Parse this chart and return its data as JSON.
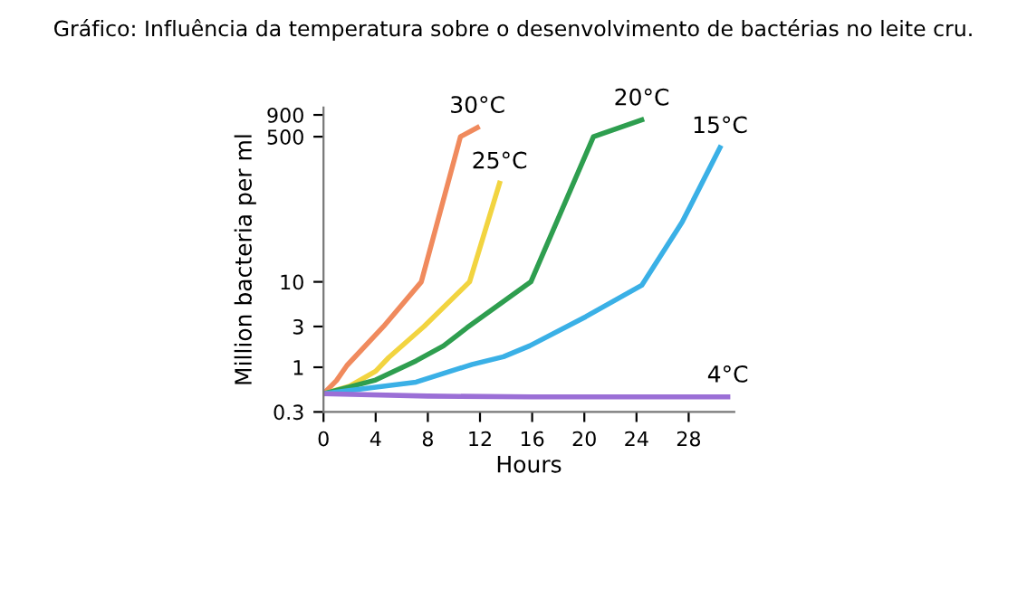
{
  "chart_data": {
    "type": "line",
    "title": "Gráfico: Influência da temperatura sobre o desenvolvimento de bactérias no leite cru.",
    "xlabel": "Hours",
    "ylabel": "Million bacteria per ml",
    "xlim": [
      0,
      31.5
    ],
    "xticks": [
      0,
      4,
      8,
      12,
      16,
      20,
      24,
      28
    ],
    "ylim": [
      0.3,
      1100
    ],
    "yticks": [
      0.3,
      1,
      3,
      10,
      500,
      900
    ],
    "log": "y",
    "grid": false,
    "legend": false,
    "marker": "none",
    "line_style": "solid",
    "series": [
      {
        "name": "30°C",
        "color": "#f08a5d",
        "x": [
          0,
          1,
          1.8,
          4.6,
          7.5,
          10.5,
          11.8
        ],
        "values": [
          0.49,
          0.7,
          1.05,
          3,
          10,
          500,
          640
        ]
      },
      {
        "name": "25°C",
        "color": "#f2d440",
        "x": [
          0,
          2,
          4,
          5,
          7.7,
          11.2,
          13.5
        ],
        "values": [
          0.49,
          0.6,
          0.9,
          1.3,
          3,
          10,
          143
        ]
      },
      {
        "name": "20°C",
        "color": "#2e9e4f",
        "x": [
          0,
          4,
          7.1,
          9.2,
          11,
          15.9,
          20.7,
          24.4
        ],
        "values": [
          0.49,
          0.71,
          1.19,
          1.78,
          2.9,
          10,
          500,
          785
        ]
      },
      {
        "name": "15°C",
        "color": "#3ab0e6",
        "x": [
          0,
          7.1,
          11.4,
          13.8,
          15.8,
          20.1,
          24.4,
          27.5,
          30.4
        ],
        "values": [
          0.49,
          0.67,
          1.08,
          1.33,
          1.78,
          3.9,
          9.1,
          50,
          372
        ]
      },
      {
        "name": "4°C",
        "color": "#9b6fd6",
        "x": [
          0,
          8,
          16,
          31
        ],
        "values": [
          0.49,
          0.46,
          0.45,
          0.45
        ]
      }
    ]
  }
}
